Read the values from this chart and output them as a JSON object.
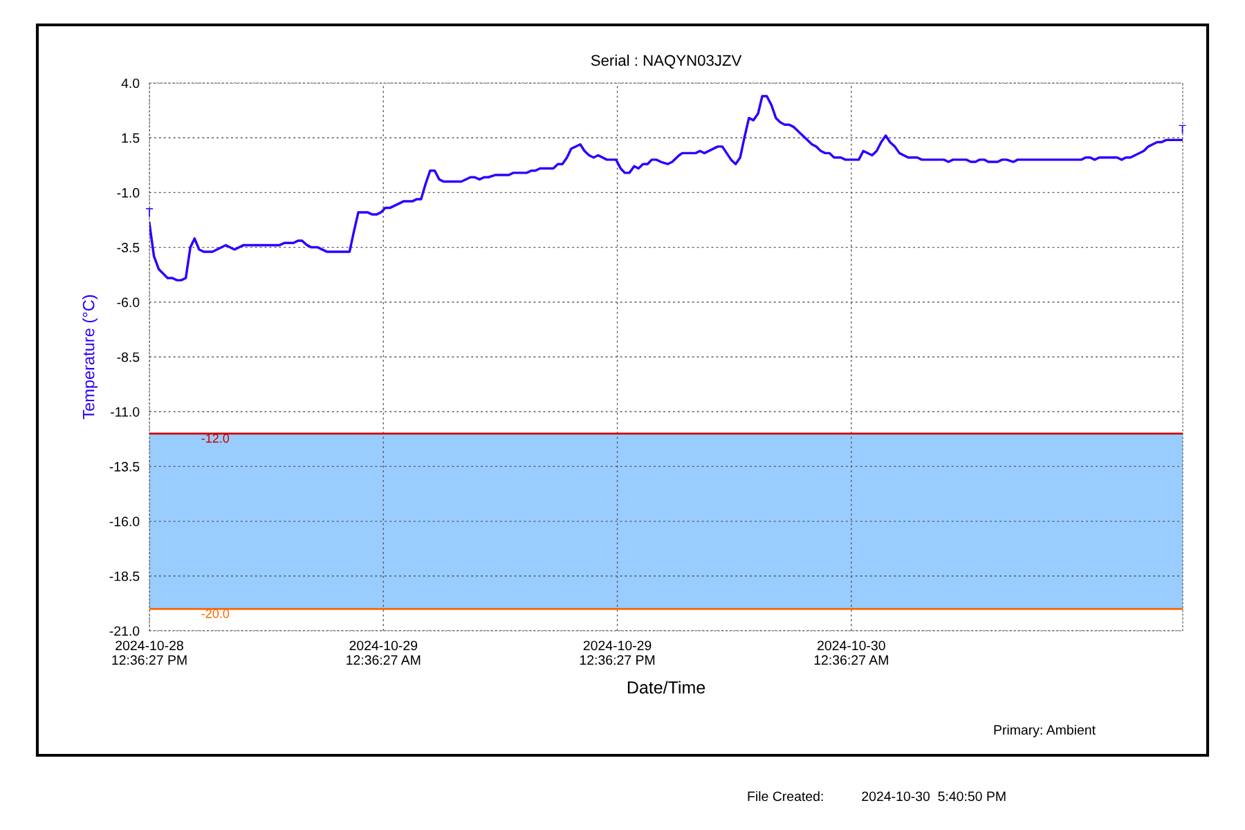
{
  "chart_data": {
    "type": "line",
    "title": "Serial : NAQYN03JZV",
    "xlabel": "Date/Time",
    "ylabel": "Temperature (°C)",
    "x": [
      "2024-10-28T12:36",
      "2024-10-28T12:50",
      "2024-10-28T13:05",
      "2024-10-28T13:32",
      "2024-10-28T13:46",
      "2024-10-28T14:01",
      "2024-10-28T14:14",
      "2024-10-28T14:28",
      "2024-10-28T14:42",
      "2024-10-28T14:55",
      "2024-10-28T15:09",
      "2024-10-28T15:23",
      "2024-10-28T15:50",
      "2024-10-28T16:31",
      "2024-10-28T16:58",
      "2024-10-28T17:26",
      "2024-10-28T19:17",
      "2024-10-28T19:31",
      "2024-10-28T19:59",
      "2024-10-28T20:13",
      "2024-10-28T20:26",
      "2024-10-28T20:41",
      "2024-10-28T20:55",
      "2024-10-28T21:14",
      "2024-10-28T21:42",
      "2024-10-28T22:52",
      "2024-10-28T23:05",
      "2024-10-28T23:19",
      "2024-10-28T23:47",
      "2024-10-29T00:02",
      "2024-10-29T00:15",
      "2024-10-29T00:29",
      "2024-10-29T00:42",
      "2024-10-29T00:56",
      "2024-10-29T01:38",
      "2024-10-29T02:05",
      "2024-10-29T02:19",
      "2024-10-29T02:32",
      "2024-10-29T02:46",
      "2024-10-29T03:00",
      "2024-10-29T03:14",
      "2024-10-29T03:28",
      "2024-10-29T03:41",
      "2024-10-29T04:36",
      "2024-10-29T05:04",
      "2024-10-29T05:17",
      "2024-10-29T05:32",
      "2024-10-29T05:46",
      "2024-10-29T05:59",
      "2024-10-29T06:20",
      "2024-10-29T07:02",
      "2024-10-29T07:16",
      "2024-10-29T07:57",
      "2024-10-29T08:11",
      "2024-10-29T08:24",
      "2024-10-29T08:38",
      "2024-10-29T09:19",
      "2024-10-29T09:33",
      "2024-10-29T09:47",
      "2024-10-29T10:01",
      "2024-10-29T10:14",
      "2024-10-29T10:42",
      "2024-10-29T10:55",
      "2024-10-29T11:09",
      "2024-10-29T11:23",
      "2024-10-29T11:37",
      "2024-10-29T12:04",
      "2024-10-29T12:32",
      "2024-10-29T12:46",
      "2024-10-29T12:59",
      "2024-10-29T13:13",
      "2024-10-29T13:28",
      "2024-10-29T13:41",
      "2024-10-29T13:55",
      "2024-10-29T14:09",
      "2024-10-29T14:22",
      "2024-10-29T14:36",
      "2024-10-29T14:50",
      "2024-10-29T15:11",
      "2024-10-29T15:25",
      "2024-10-29T15:46",
      "2024-10-29T15:56",
      "2024-10-29T16:37",
      "2024-10-29T16:50",
      "2024-10-29T17:04",
      "2024-10-29T17:45",
      "2024-10-29T17:59",
      "2024-10-29T18:26",
      "2024-10-29T18:40",
      "2024-10-29T18:54",
      "2024-10-29T19:07",
      "2024-10-29T19:21",
      "2024-10-29T19:35",
      "2024-10-29T19:49",
      "2024-10-29T20:02",
      "2024-10-29T20:16",
      "2024-10-29T20:30",
      "2024-10-29T20:44",
      "2024-10-29T20:58",
      "2024-10-29T21:11",
      "2024-10-29T21:25",
      "2024-10-29T21:38",
      "2024-10-29T22:35",
      "2024-10-29T22:48",
      "2024-10-29T23:02",
      "2024-10-29T23:16",
      "2024-10-29T23:29",
      "2024-10-29T23:43",
      "2024-10-30T00:04",
      "2024-10-30T00:18",
      "2024-10-30T00:59",
      "2024-10-30T01:13",
      "2024-10-30T01:40",
      "2024-10-30T01:54",
      "2024-10-30T02:08",
      "2024-10-30T02:22",
      "2024-10-30T02:35",
      "2024-10-30T02:50",
      "2024-10-30T03:04",
      "2024-10-30T03:31",
      "2024-10-30T03:59",
      "2024-10-30T04:13",
      "2024-10-30T05:21",
      "2024-10-30T05:35",
      "2024-10-30T05:49",
      "2024-10-30T06:30",
      "2024-10-30T06:44",
      "2024-10-30T06:58",
      "2024-10-30T07:11",
      "2024-10-30T07:25",
      "2024-10-30T07:38",
      "2024-10-30T08:06",
      "2024-10-30T08:20",
      "2024-10-30T08:34",
      "2024-10-30T08:55",
      "2024-10-30T09:08",
      "2024-10-30T12:24",
      "2024-10-30T12:37",
      "2024-10-30T12:51",
      "2024-10-30T13:05",
      "2024-10-30T13:19",
      "2024-10-30T14:14",
      "2024-10-30T14:28",
      "2024-10-30T14:41",
      "2024-10-30T14:55",
      "2024-10-30T15:36",
      "2024-10-30T15:50",
      "2024-10-30T16:17",
      "2024-10-30T16:31",
      "2024-10-30T16:45",
      "2024-10-30T17:35"
    ],
    "series": [
      {
        "color": "#2a00ff",
        "values": [
          -2.4,
          -3.9,
          -4.5,
          -4.9,
          -4.9,
          -5.0,
          -5.0,
          -4.9,
          -3.5,
          -3.1,
          -3.6,
          -3.7,
          -3.7,
          -3.4,
          -3.6,
          -3.4,
          -3.4,
          -3.3,
          -3.3,
          -3.2,
          -3.2,
          -3.4,
          -3.5,
          -3.5,
          -3.7,
          -3.7,
          -2.8,
          -1.9,
          -1.9,
          -2.0,
          -2.0,
          -1.9,
          -1.7,
          -1.7,
          -1.4,
          -1.4,
          -1.3,
          -1.3,
          -0.6,
          0.0,
          0.0,
          -0.4,
          -0.5,
          -0.5,
          -0.3,
          -0.3,
          -0.4,
          -0.3,
          -0.3,
          -0.2,
          -0.2,
          -0.1,
          -0.1,
          0.0,
          0.0,
          0.1,
          0.1,
          0.3,
          0.3,
          0.6,
          1.0,
          1.2,
          0.9,
          0.7,
          0.6,
          0.7,
          0.5,
          0.5,
          0.1,
          -0.1,
          -0.1,
          0.2,
          0.1,
          0.3,
          0.3,
          0.5,
          0.5,
          0.4,
          0.3,
          0.4,
          0.7,
          0.8,
          0.8,
          0.9,
          0.8,
          1.1,
          1.1,
          0.5,
          0.3,
          0.6,
          1.5,
          2.4,
          2.3,
          2.6,
          3.4,
          3.4,
          3.0,
          2.4,
          2.2,
          2.1,
          2.1,
          2.0,
          1.2,
          1.1,
          0.9,
          0.8,
          0.8,
          0.6,
          0.6,
          0.5,
          0.5,
          0.9,
          0.7,
          0.9,
          1.3,
          1.6,
          1.3,
          1.1,
          0.8,
          0.6,
          0.6,
          0.5,
          0.5,
          0.4,
          0.5,
          0.5,
          0.4,
          0.4,
          0.5,
          0.5,
          0.4,
          0.4,
          0.5,
          0.5,
          0.4,
          0.5,
          0.5,
          0.6,
          0.6,
          0.5,
          0.6,
          0.6,
          0.5,
          0.6,
          0.6,
          0.9,
          1.1,
          1.3,
          1.3,
          1.4,
          1.4
        ]
      }
    ],
    "xlim": [
      "2024-10-28T12:36",
      "2024-10-30T17:36"
    ],
    "xticks": [
      {
        "value": "2024-10-28T12:36",
        "label": "2024-10-28\n12:36:27 PM"
      },
      {
        "value": "2024-10-29T00:36",
        "label": "2024-10-29\n12:36:27 AM"
      },
      {
        "value": "2024-10-29T12:36",
        "label": "2024-10-29\n12:36:27 PM"
      },
      {
        "value": "2024-10-30T00:36",
        "label": "2024-10-30\n12:36:27 AM"
      }
    ],
    "ylim": [
      -21,
      4
    ],
    "yticks": [
      {
        "value": 4,
        "label": "4.0"
      },
      {
        "value": 1.5,
        "label": "1.5"
      },
      {
        "value": -1,
        "label": "-1.0"
      },
      {
        "value": -3.5,
        "label": "-3.5"
      },
      {
        "value": -6,
        "label": "-6.0"
      },
      {
        "value": -8.5,
        "label": "-8.5"
      },
      {
        "value": -11,
        "label": "-11.0"
      },
      {
        "value": -13.5,
        "label": "-13.5"
      },
      {
        "value": -16,
        "label": "-16.0"
      },
      {
        "value": -18.5,
        "label": "-18.5"
      },
      {
        "value": -21,
        "label": "-21.0"
      }
    ],
    "grid": true,
    "line_style": "solid",
    "marker": "none",
    "bands": [
      {
        "axis": "y",
        "from": -20,
        "to": -12,
        "color": "#99ccff"
      }
    ],
    "ref_lines": [
      {
        "axis": "y",
        "value": -12,
        "label": "-12.0",
        "color": "#cc0000"
      },
      {
        "axis": "y",
        "value": -20,
        "label": "-20.0",
        "color": "#ff6600"
      }
    ],
    "annotations": [
      {
        "text": "T",
        "x": "2024-10-28T12:36",
        "y": -2.4
      },
      {
        "text": "T",
        "x": "2024-10-30T17:35",
        "y": 1.4
      },
      "Primary: Ambient",
      "File Created:          2024-10-30  5:40:50 PM"
    ]
  }
}
